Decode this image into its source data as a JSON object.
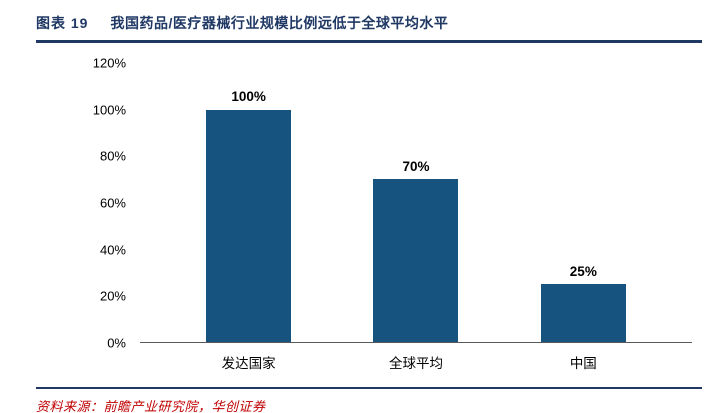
{
  "header": {
    "figure_label": "图表 19",
    "title": "我国药品/医疗器械行业规模比例远低于全球平均水平"
  },
  "chart_data": {
    "type": "bar",
    "title": "我国药品/医疗器械行业规模比例远低于全球平均水平",
    "categories": [
      "发达国家",
      "全球平均",
      "中国"
    ],
    "values": [
      100,
      70,
      25
    ],
    "value_labels": [
      "100%",
      "70%",
      "25%"
    ],
    "ylim": [
      0,
      120
    ],
    "yticks": [
      {
        "value": 0,
        "label": "0%"
      },
      {
        "value": 20,
        "label": "20%"
      },
      {
        "value": 40,
        "label": "40%"
      },
      {
        "value": 60,
        "label": "60%"
      },
      {
        "value": 80,
        "label": "80%"
      },
      {
        "value": 100,
        "label": "100%"
      },
      {
        "value": 120,
        "label": "120%"
      }
    ],
    "xlabel": "",
    "ylabel": "",
    "grid": false,
    "legend": false
  },
  "footer": {
    "source_text": "资料来源：前瞻产业研究院，华创证券"
  },
  "colors": {
    "title": "#1F3864",
    "divider": "#1F3864",
    "bar": "#16537E",
    "source": "#C00000",
    "axis": "#595959"
  }
}
